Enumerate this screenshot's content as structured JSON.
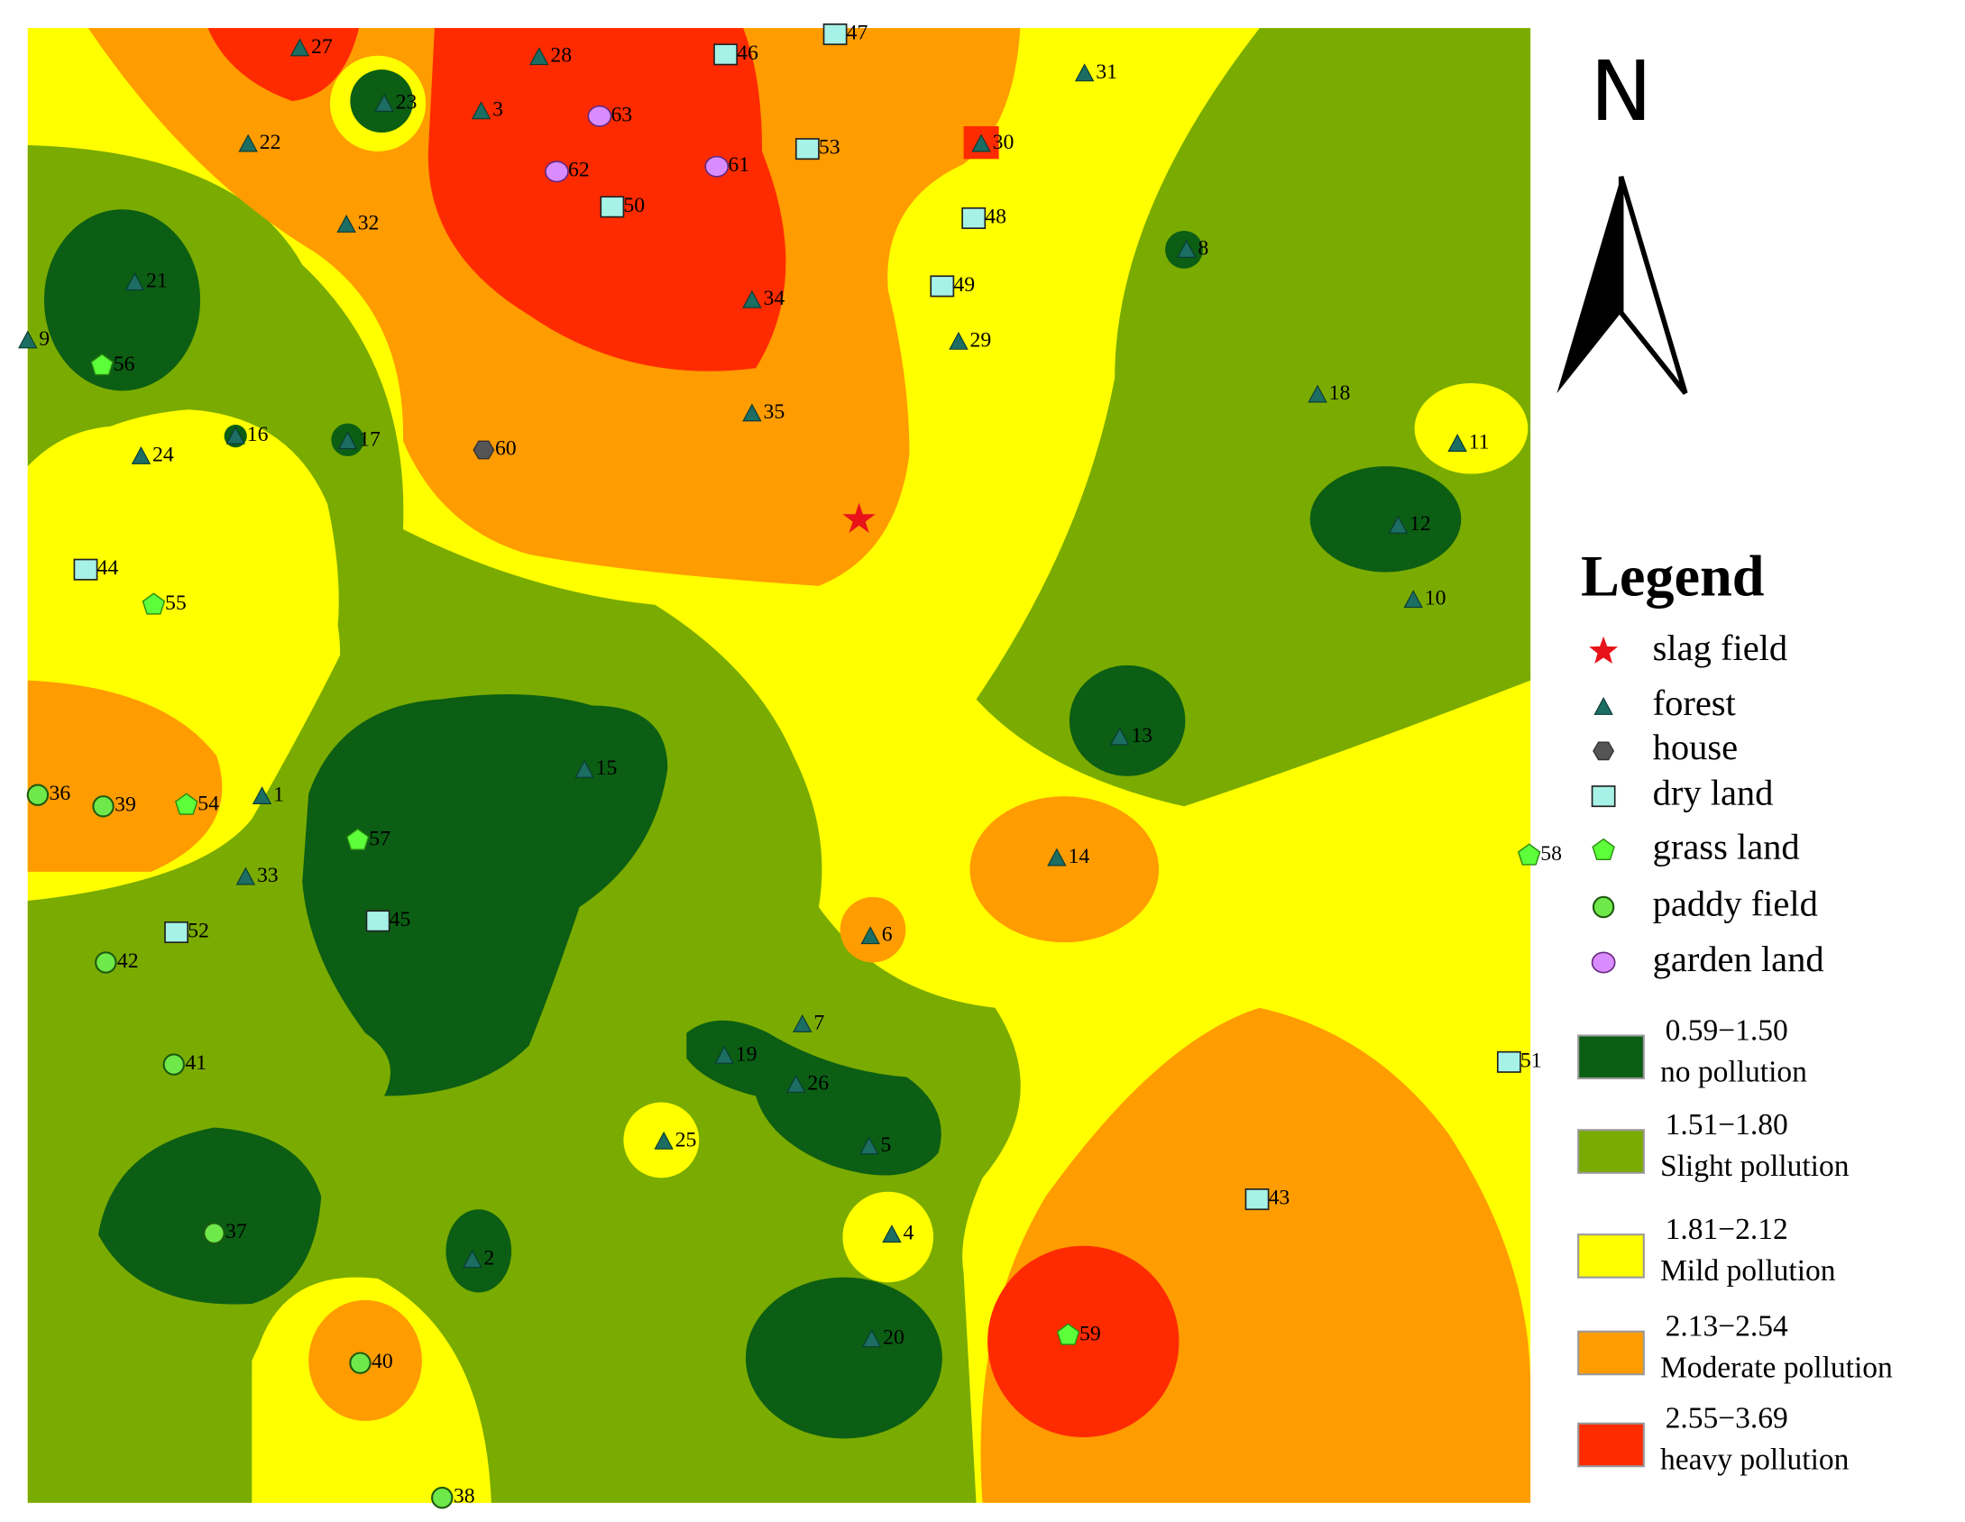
{
  "legend": {
    "title": "Legend",
    "symbols": [
      {
        "label": "slag field"
      },
      {
        "label": "forest"
      },
      {
        "label": "house"
      },
      {
        "label": "dry land"
      },
      {
        "label": "grass land"
      },
      {
        "label": "paddy field"
      },
      {
        "label": "garden land"
      }
    ],
    "classes": [
      {
        "range": "0.59−1.50",
        "description": "no pollution",
        "color": "#0b5e14"
      },
      {
        "range": "1.51−1.80",
        "description": "Slight pollution",
        "color": "#7aab00"
      },
      {
        "range": "1.81−2.12",
        "description": "Mild pollution",
        "color": "#ffff00"
      },
      {
        "range": "2.13−2.54",
        "description": "Moderate pollution",
        "color": "#ff9c00"
      },
      {
        "range": "2.55−3.69",
        "description": "heavy pollution",
        "color": "#ff2b00"
      }
    ]
  },
  "north": "N",
  "points": [
    {
      "label": "27",
      "type": "forest"
    },
    {
      "label": "28",
      "type": "forest"
    },
    {
      "label": "46",
      "type": "dry land"
    },
    {
      "label": "47",
      "type": "dry land"
    },
    {
      "label": "23",
      "type": "forest"
    },
    {
      "label": "3",
      "type": "forest"
    },
    {
      "label": "63",
      "type": "garden land"
    },
    {
      "label": "31",
      "type": "forest"
    },
    {
      "label": "22",
      "type": "forest"
    },
    {
      "label": "53",
      "type": "dry land"
    },
    {
      "label": "30",
      "type": "forest"
    },
    {
      "label": "62",
      "type": "garden land"
    },
    {
      "label": "61",
      "type": "garden land"
    },
    {
      "label": "50",
      "type": "dry land"
    },
    {
      "label": "48",
      "type": "dry land"
    },
    {
      "label": "32",
      "type": "forest"
    },
    {
      "label": "8",
      "type": "forest"
    },
    {
      "label": "21",
      "type": "forest"
    },
    {
      "label": "49",
      "type": "dry land"
    },
    {
      "label": "34",
      "type": "forest"
    },
    {
      "label": "9",
      "type": "forest"
    },
    {
      "label": "29",
      "type": "forest"
    },
    {
      "label": "56",
      "type": "grass land"
    },
    {
      "label": "18",
      "type": "forest"
    },
    {
      "label": "35",
      "type": "forest"
    },
    {
      "label": "16",
      "type": "forest"
    },
    {
      "label": "17",
      "type": "forest"
    },
    {
      "label": "11",
      "type": "forest"
    },
    {
      "label": "60",
      "type": "house"
    },
    {
      "label": "24",
      "type": "forest"
    },
    {
      "label": "12",
      "type": "forest"
    },
    {
      "label": "44",
      "type": "dry land"
    },
    {
      "label": "10",
      "type": "forest"
    },
    {
      "label": "55",
      "type": "grass land"
    },
    {
      "label": "13",
      "type": "forest"
    },
    {
      "label": "15",
      "type": "forest"
    },
    {
      "label": "36",
      "type": "paddy field"
    },
    {
      "label": "39",
      "type": "paddy field"
    },
    {
      "label": "54",
      "type": "grass land"
    },
    {
      "label": "1",
      "type": "forest"
    },
    {
      "label": "57",
      "type": "grass land"
    },
    {
      "label": "14",
      "type": "forest"
    },
    {
      "label": "58",
      "type": "grass land"
    },
    {
      "label": "33",
      "type": "forest"
    },
    {
      "label": "45",
      "type": "dry land"
    },
    {
      "label": "52",
      "type": "dry land"
    },
    {
      "label": "6",
      "type": "forest"
    },
    {
      "label": "42",
      "type": "paddy field"
    },
    {
      "label": "7",
      "type": "forest"
    },
    {
      "label": "19",
      "type": "forest"
    },
    {
      "label": "51",
      "type": "dry land"
    },
    {
      "label": "41",
      "type": "paddy field"
    },
    {
      "label": "26",
      "type": "forest"
    },
    {
      "label": "5",
      "type": "forest"
    },
    {
      "label": "25",
      "type": "forest"
    },
    {
      "label": "43",
      "type": "dry land"
    },
    {
      "label": "37",
      "type": "paddy field"
    },
    {
      "label": "4",
      "type": "forest"
    },
    {
      "label": "2",
      "type": "forest"
    },
    {
      "label": "20",
      "type": "forest"
    },
    {
      "label": "59",
      "type": "grass land"
    },
    {
      "label": "40",
      "type": "paddy field"
    },
    {
      "label": "38",
      "type": "paddy field"
    }
  ]
}
